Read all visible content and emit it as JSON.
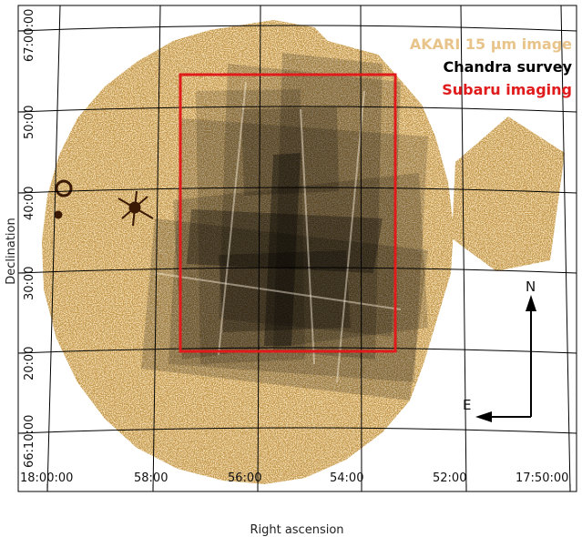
{
  "figure": {
    "xlabel": "Right ascension",
    "ylabel": "Declination",
    "ra_ticks": [
      "18:00:00",
      "58:00",
      "56:00",
      "54:00",
      "52:00",
      "17:50:00"
    ],
    "dec_ticks": [
      "67:00:00",
      "50:00",
      "40:00",
      "30:00",
      "20:00",
      "66:10:00"
    ]
  },
  "legend": {
    "items": [
      {
        "label": "AKARI 15 µm image",
        "color": "#e8c48a"
      },
      {
        "label": "Chandra survey",
        "color": "#000000"
      },
      {
        "label": "Subaru imaging",
        "color": "#e01b1b"
      }
    ]
  },
  "compass": {
    "north": "N",
    "east": "E"
  },
  "colors": {
    "akari": "#f3dcb0",
    "chandra": "#000000",
    "subaru": "#e01b1b",
    "grid": "#000000"
  }
}
